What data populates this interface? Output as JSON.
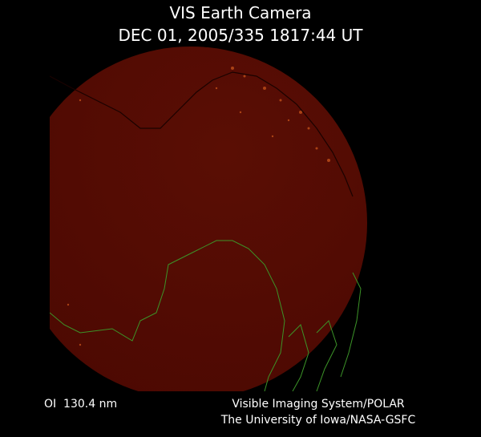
{
  "header": {
    "title": "VIS Earth Camera",
    "timestamp": "DEC 01, 2005/335 1817:44 UT"
  },
  "footer": {
    "filter": "OI  130.4 nm",
    "credit_lines": [
      "Visible Imaging System/POLAR",
      "The University of Iowa/NASA-GSFC"
    ]
  }
}
